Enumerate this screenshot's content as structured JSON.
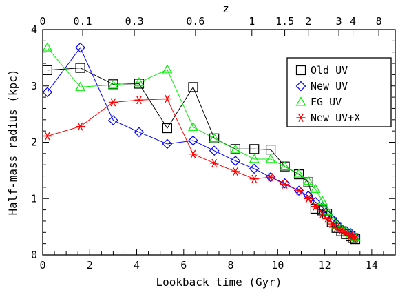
{
  "chart_data": {
    "type": "line",
    "xlabel": "Lookback time (Gyr)",
    "ylabel": "Half-mass radius (kpc)",
    "top_axis_label": "z",
    "xlim": [
      0,
      15
    ],
    "ylim": [
      0,
      4
    ],
    "x_ticks": [
      0,
      2,
      4,
      6,
      8,
      10,
      12,
      14
    ],
    "y_ticks": [
      0,
      1,
      2,
      3,
      4
    ],
    "top_ticks": [
      {
        "label": "0",
        "t": 0
      },
      {
        "label": "0.1",
        "t": 1.7
      },
      {
        "label": "0.3",
        "t": 3.9
      },
      {
        "label": "0.6",
        "t": 6.5
      },
      {
        "label": "1",
        "t": 8.9
      },
      {
        "label": "1.5",
        "t": 10.3
      },
      {
        "label": "2",
        "t": 11.3
      },
      {
        "label": "3",
        "t": 12.6
      },
      {
        "label": "4",
        "t": 13.2
      },
      {
        "label": "8",
        "t": 14.3
      }
    ],
    "grid": false,
    "legend_position": "top-right",
    "series": [
      {
        "name": "Old UV",
        "color": "#000000",
        "marker": "square",
        "x": [
          0.2,
          1.6,
          3.0,
          4.1,
          5.3,
          6.4,
          7.3,
          8.2,
          9.0,
          9.7,
          10.3,
          10.9,
          11.3,
          11.6,
          11.9,
          12.1,
          12.3,
          12.5,
          12.7,
          12.9,
          13.1,
          13.2,
          13.3
        ],
        "y": [
          3.28,
          3.32,
          3.03,
          3.04,
          2.25,
          2.98,
          2.07,
          1.88,
          1.88,
          1.87,
          1.57,
          1.43,
          1.29,
          0.82,
          0.79,
          0.73,
          0.58,
          0.48,
          0.42,
          0.37,
          0.33,
          0.3,
          0.28
        ]
      },
      {
        "name": "New UV",
        "color": "#0000ff",
        "marker": "diamond",
        "x": [
          0.2,
          1.6,
          3.0,
          4.1,
          5.3,
          6.4,
          7.3,
          8.2,
          9.0,
          9.7,
          10.3,
          10.9,
          11.3,
          11.6,
          11.9,
          12.1,
          12.3,
          12.5,
          12.7,
          12.9,
          13.1,
          13.2,
          13.3
        ],
        "y": [
          2.89,
          3.68,
          2.39,
          2.18,
          1.97,
          2.03,
          1.85,
          1.67,
          1.53,
          1.38,
          1.27,
          1.14,
          1.05,
          0.94,
          0.85,
          0.72,
          0.64,
          0.55,
          0.47,
          0.43,
          0.39,
          0.34,
          0.31
        ]
      },
      {
        "name": "FG UV",
        "color": "#00ee00",
        "marker": "triangle",
        "x": [
          0.2,
          1.6,
          3.0,
          4.1,
          5.3,
          6.4,
          7.3,
          8.2,
          9.0,
          9.7,
          10.3,
          10.9,
          11.3,
          11.6,
          11.9,
          12.1,
          12.3,
          12.5,
          12.7,
          12.9,
          13.1,
          13.2,
          13.3
        ],
        "y": [
          3.68,
          2.98,
          3.02,
          3.06,
          3.29,
          2.27,
          2.07,
          1.87,
          1.7,
          1.7,
          1.57,
          1.44,
          1.31,
          1.17,
          0.96,
          0.78,
          0.64,
          0.53,
          0.47,
          0.43,
          0.38,
          0.34,
          0.31
        ]
      },
      {
        "name": "New UV+X",
        "color": "#ff0000",
        "marker": "asterisk",
        "x": [
          0.2,
          1.6,
          3.0,
          4.1,
          5.3,
          6.4,
          7.3,
          8.2,
          9.0,
          9.7,
          10.3,
          10.9,
          11.3,
          11.6,
          11.9,
          12.1,
          12.3,
          12.5,
          12.7,
          12.9,
          13.1,
          13.2,
          13.3
        ],
        "y": [
          2.11,
          2.28,
          2.71,
          2.75,
          2.77,
          1.79,
          1.63,
          1.48,
          1.35,
          1.38,
          1.25,
          1.14,
          1.0,
          0.86,
          0.73,
          0.64,
          0.55,
          0.48,
          0.43,
          0.39,
          0.35,
          0.32,
          0.3
        ]
      }
    ]
  }
}
